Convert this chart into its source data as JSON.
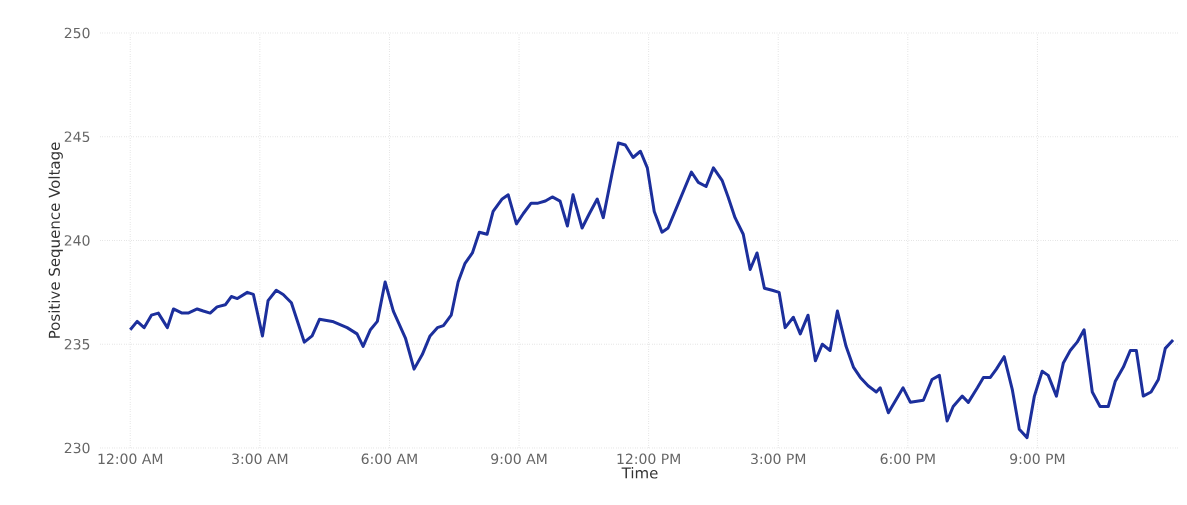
{
  "chart_data": {
    "type": "line",
    "xlabel": "Time",
    "ylabel": "Positive Sequence Voltage",
    "x": [
      0,
      0.16,
      0.32,
      0.49,
      0.65,
      0.86,
      1.0,
      1.2,
      1.34,
      1.55,
      1.69,
      1.85,
      2.01,
      2.2,
      2.34,
      2.48,
      2.71,
      2.85,
      3.06,
      3.19,
      3.38,
      3.54,
      3.73,
      4.03,
      4.21,
      4.38,
      4.68,
      5.02,
      5.25,
      5.39,
      5.56,
      5.72,
      5.9,
      6.09,
      6.37,
      6.57,
      6.76,
      6.94,
      7.11,
      7.25,
      7.43,
      7.59,
      7.75,
      7.92,
      8.08,
      8.26,
      8.4,
      8.61,
      8.75,
      8.94,
      9.1,
      9.28,
      9.44,
      9.61,
      9.77,
      9.95,
      10.12,
      10.25,
      10.46,
      10.63,
      10.81,
      10.95,
      11.16,
      11.3,
      11.46,
      11.64,
      11.81,
      11.97,
      12.13,
      12.31,
      12.45,
      12.69,
      12.99,
      13.15,
      13.33,
      13.5,
      13.7,
      13.84,
      14.0,
      14.19,
      14.35,
      14.51,
      14.68,
      14.86,
      15.02,
      15.16,
      15.35,
      15.51,
      15.69,
      15.86,
      16.02,
      16.2,
      16.37,
      16.57,
      16.74,
      16.9,
      17.08,
      17.27,
      17.36,
      17.55,
      17.89,
      18.06,
      18.36,
      18.56,
      18.73,
      18.91,
      19.05,
      19.26,
      19.4,
      19.61,
      19.75,
      19.91,
      20.05,
      20.23,
      20.42,
      20.58,
      20.76,
      20.93,
      21.11,
      21.25,
      21.44,
      21.6,
      21.76,
      21.92,
      22.08,
      22.27,
      22.45,
      22.64,
      22.8,
      22.99,
      23.15,
      23.29,
      23.45,
      23.63,
      23.8,
      23.96,
      24.14
    ],
    "series": [
      {
        "color": "#1c2f9c",
        "values": [
          235.7,
          236.1,
          235.8,
          236.4,
          236.5,
          235.8,
          236.7,
          236.5,
          236.5,
          236.7,
          236.6,
          236.5,
          236.8,
          236.9,
          237.3,
          237.2,
          237.5,
          237.4,
          235.4,
          237.1,
          237.6,
          237.4,
          237.0,
          235.1,
          235.4,
          236.2,
          236.1,
          235.8,
          235.5,
          234.9,
          235.7,
          236.1,
          238.0,
          236.6,
          235.3,
          233.8,
          234.5,
          235.4,
          235.8,
          235.9,
          236.4,
          238.0,
          238.9,
          239.4,
          240.4,
          240.3,
          241.4,
          242.0,
          242.2,
          240.8,
          241.3,
          241.8,
          241.8,
          241.9,
          242.1,
          241.9,
          240.7,
          242.2,
          240.6,
          241.3,
          242.0,
          241.1,
          243.3,
          244.7,
          244.6,
          244.0,
          244.3,
          243.5,
          241.4,
          240.4,
          240.6,
          241.8,
          243.3,
          242.8,
          242.6,
          243.5,
          242.9,
          242.1,
          241.1,
          240.3,
          238.6,
          239.4,
          237.7,
          237.6,
          237.5,
          235.8,
          236.3,
          235.5,
          236.4,
          234.2,
          235.0,
          234.7,
          236.6,
          234.9,
          233.9,
          233.4,
          233.0,
          232.7,
          232.9,
          231.7,
          232.9,
          232.2,
          232.3,
          233.3,
          233.5,
          231.3,
          232.0,
          232.5,
          232.2,
          232.9,
          233.4,
          233.4,
          233.8,
          234.4,
          232.8,
          230.9,
          230.5,
          232.5,
          233.7,
          233.5,
          232.5,
          234.1,
          234.7,
          235.1,
          235.7,
          232.7,
          232.0,
          232.0,
          233.2,
          233.9,
          234.7,
          234.7,
          232.5,
          232.7,
          233.3,
          234.8,
          235.2
        ]
      }
    ],
    "xlim": [
      -0.7,
      24.3
    ],
    "ylim": [
      230,
      250
    ],
    "xticks": [
      {
        "value": 0,
        "label": "12:00 AM"
      },
      {
        "value": 3,
        "label": "3:00 AM"
      },
      {
        "value": 6,
        "label": "6:00 AM"
      },
      {
        "value": 9,
        "label": "9:00 AM"
      },
      {
        "value": 12,
        "label": "12:00 PM"
      },
      {
        "value": 15,
        "label": "3:00 PM"
      },
      {
        "value": 18,
        "label": "6:00 PM"
      },
      {
        "value": 21,
        "label": "9:00 PM"
      }
    ],
    "yticks": [
      230,
      235,
      240,
      245,
      250
    ],
    "grid": true,
    "line_style": "solid"
  }
}
